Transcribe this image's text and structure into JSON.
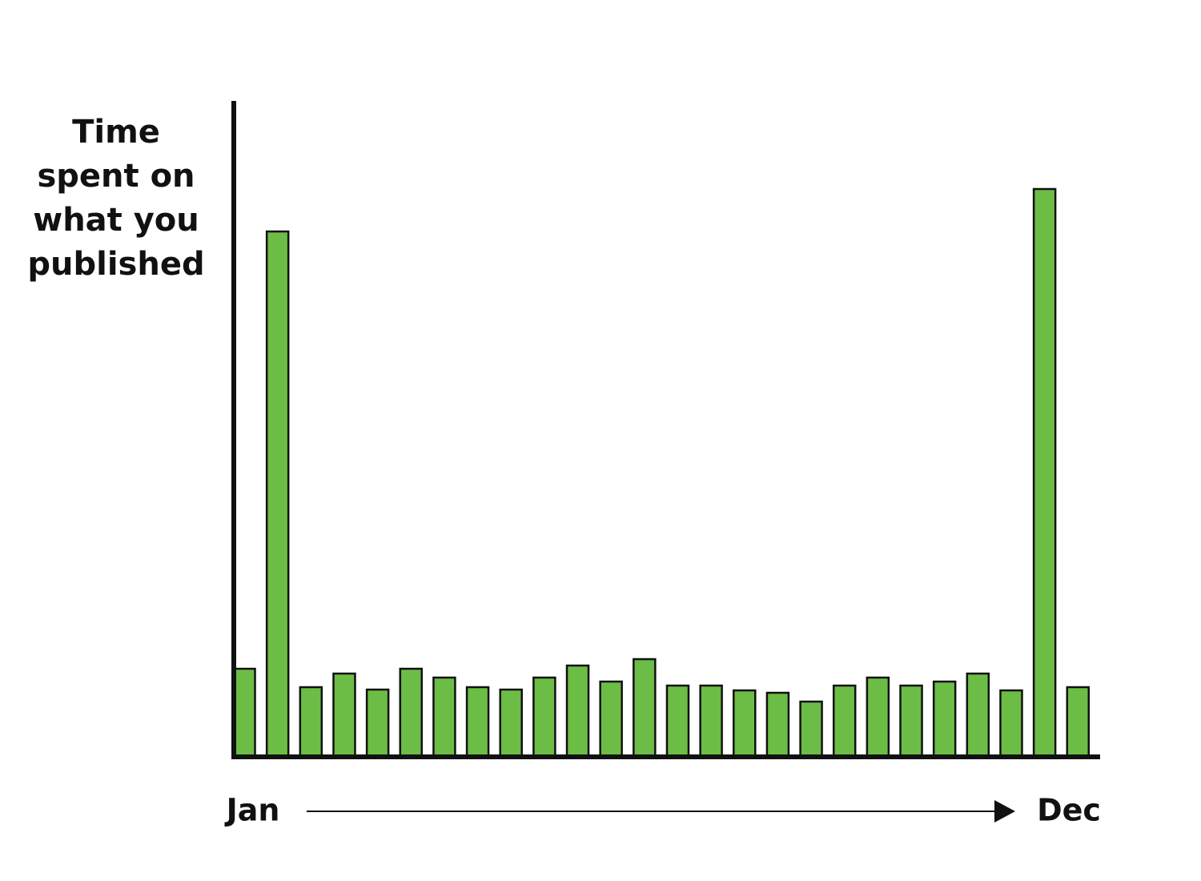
{
  "chart_data": {
    "type": "bar",
    "y_label_lines": [
      "Time",
      "spent on",
      "what you",
      "published"
    ],
    "x_start_label": "Jan",
    "x_end_label": "Dec",
    "categories": [
      null,
      null,
      null,
      null,
      null,
      null,
      null,
      null,
      null,
      null,
      null,
      null,
      null,
      null,
      null,
      null,
      null,
      null,
      null,
      null,
      null,
      null,
      null,
      null,
      null,
      null
    ],
    "values": [
      109,
      655,
      86,
      103,
      83,
      109,
      98,
      86,
      83,
      98,
      113,
      93,
      121,
      88,
      88,
      82,
      79,
      68,
      88,
      98,
      88,
      93,
      103,
      82,
      708,
      86
    ],
    "color": "#6cbd45",
    "ylim": [
      0,
      820
    ]
  }
}
